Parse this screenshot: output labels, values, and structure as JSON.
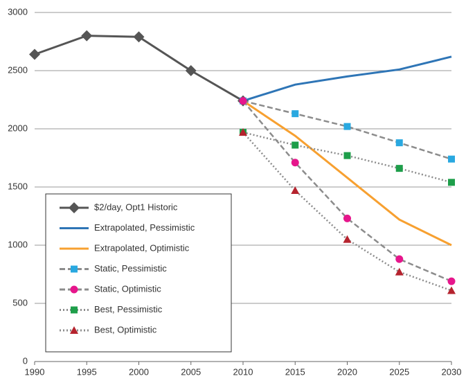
{
  "chart_data": {
    "type": "line",
    "x": [
      1990,
      1995,
      2000,
      2005,
      2010,
      2015,
      2020,
      2025,
      2030
    ],
    "xlim": [
      1990,
      2030
    ],
    "xticks": [
      1990,
      1995,
      2000,
      2005,
      2010,
      2015,
      2020,
      2025,
      2030
    ],
    "ylim": [
      0,
      3000
    ],
    "yticks": [
      0,
      500,
      1000,
      1500,
      2000,
      2500,
      3000
    ],
    "grid": true,
    "legend": "lower left",
    "series": [
      {
        "name": "$2/day, Opt1 Historic",
        "color": "#555555",
        "dash": "solid",
        "marker": "diamond",
        "marker_color": "#555555",
        "values": [
          2640,
          2800,
          2790,
          2500,
          2240,
          null,
          null,
          null,
          null
        ]
      },
      {
        "name": "Extrapolated, Pessimistic",
        "color": "#2e75b6",
        "dash": "solid",
        "marker": "none",
        "values": [
          null,
          null,
          null,
          null,
          2240,
          2380,
          2450,
          2510,
          2620
        ]
      },
      {
        "name": "Extrapolated, Optimistic",
        "color": "#f7a030",
        "dash": "solid",
        "marker": "none",
        "values": [
          null,
          null,
          null,
          null,
          2240,
          1940,
          1580,
          1220,
          1000
        ]
      },
      {
        "name": "Static, Pessimistic",
        "color": "#8c8c8c",
        "dash": "dashed",
        "marker": "square",
        "marker_color": "#29a8e0",
        "values": [
          null,
          null,
          null,
          null,
          2240,
          2130,
          2020,
          1880,
          1740
        ]
      },
      {
        "name": "Static, Optimistic",
        "color": "#8c8c8c",
        "dash": "dashed",
        "marker": "circle",
        "marker_color": "#e6168c",
        "values": [
          null,
          null,
          null,
          null,
          2240,
          1710,
          1230,
          880,
          690
        ]
      },
      {
        "name": "Best, Pessimistic",
        "color": "#8c8c8c",
        "dash": "dotted",
        "marker": "square",
        "marker_color": "#1e9e4a",
        "values": [
          null,
          null,
          null,
          null,
          1970,
          1860,
          1770,
          1660,
          1540
        ]
      },
      {
        "name": "Best, Optimistic",
        "color": "#8c8c8c",
        "dash": "dotted",
        "marker": "triangle",
        "marker_color": "#b5232e",
        "values": [
          null,
          null,
          null,
          null,
          1970,
          1470,
          1050,
          770,
          610
        ]
      }
    ]
  }
}
